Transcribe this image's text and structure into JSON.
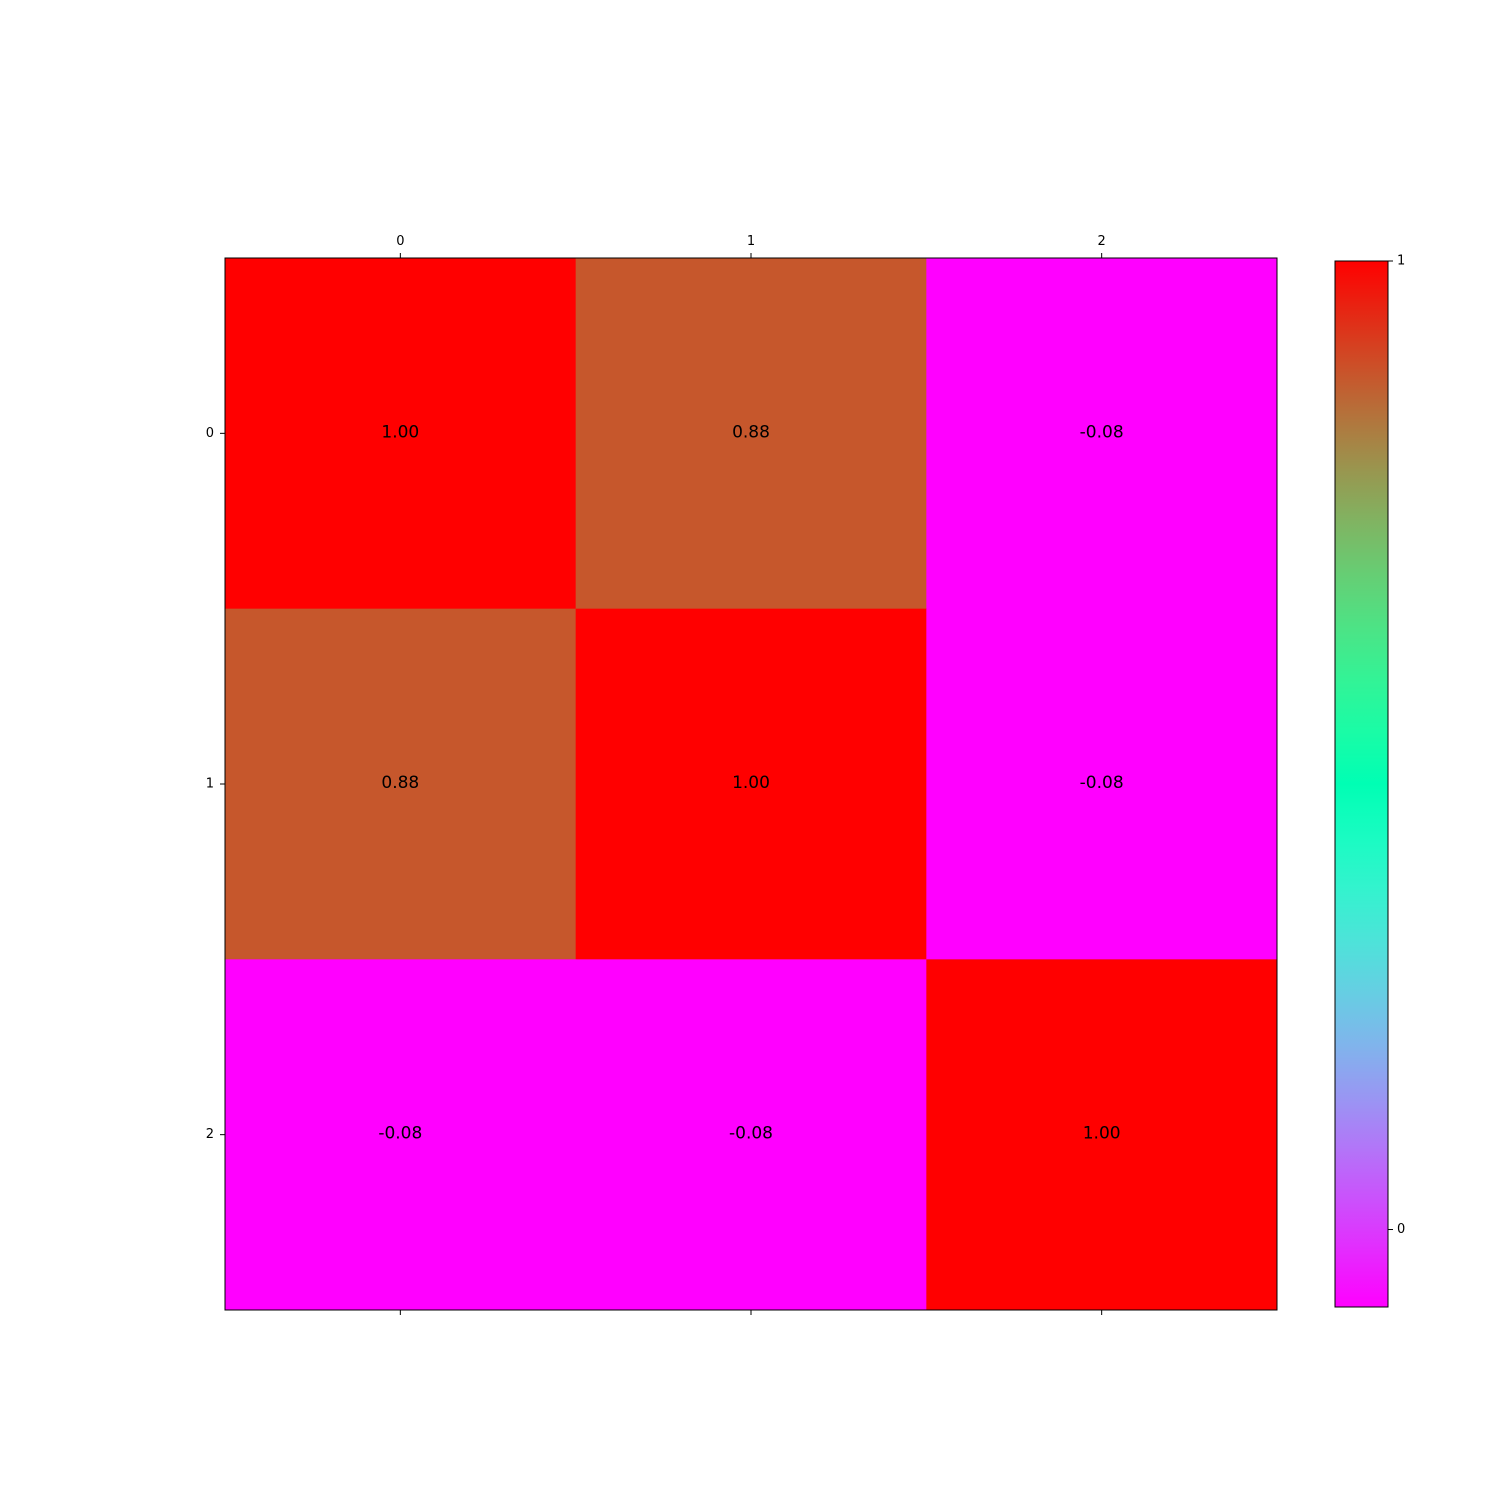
{
  "chart_data": {
    "type": "heatmap",
    "title": "",
    "xlabel": "",
    "ylabel": "",
    "x_categories": [
      "0",
      "1",
      "2"
    ],
    "y_categories": [
      "0",
      "1",
      "2"
    ],
    "x_ticks_position": "top",
    "values": [
      [
        1.0,
        0.88,
        -0.08
      ],
      [
        0.88,
        1.0,
        -0.08
      ],
      [
        -0.08,
        -0.08,
        1.0
      ]
    ],
    "cell_labels": [
      [
        "1.00",
        "0.88",
        "-0.08"
      ],
      [
        "0.88",
        "1.00",
        "-0.08"
      ],
      [
        "-0.08",
        "-0.08",
        "1.00"
      ]
    ],
    "colormap": "rainbow",
    "colorbar": {
      "position": "right",
      "range": [
        -0.08,
        1.0
      ],
      "ticks": [
        0,
        1
      ],
      "tick_labels": [
        "0",
        "1"
      ]
    },
    "grid": false
  }
}
